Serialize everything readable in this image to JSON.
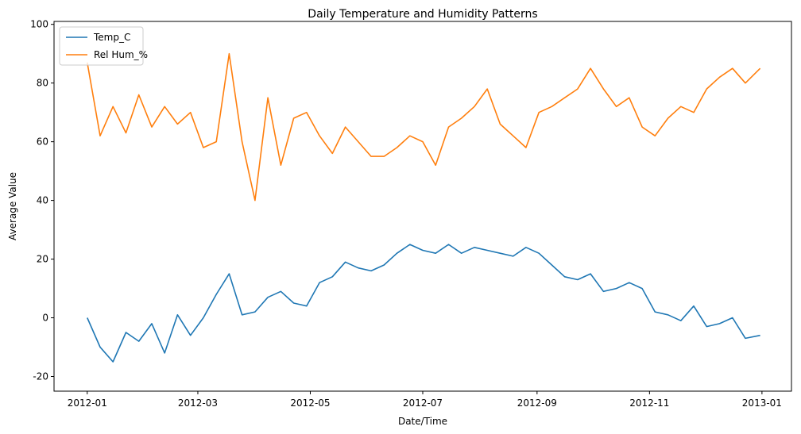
{
  "chart_data": {
    "type": "line",
    "title": "Daily Temperature and Humidity Patterns",
    "xlabel": "Date/Time",
    "ylabel": "Average Value",
    "x_tick_labels": [
      "2012-01",
      "2012-03",
      "2012-05",
      "2012-07",
      "2012-09",
      "2012-11",
      "2013-01"
    ],
    "y_ticks": [
      -20,
      0,
      20,
      40,
      60,
      80,
      100
    ],
    "ylim": [
      -25,
      101
    ],
    "xlim": [
      "2011-12-14",
      "2013-01-17"
    ],
    "legend_position": "upper-left",
    "grid": false,
    "x": [
      "2012-01-01",
      "2012-01-08",
      "2012-01-15",
      "2012-01-22",
      "2012-01-29",
      "2012-02-05",
      "2012-02-12",
      "2012-02-19",
      "2012-02-26",
      "2012-03-04",
      "2012-03-11",
      "2012-03-18",
      "2012-03-25",
      "2012-04-01",
      "2012-04-08",
      "2012-04-15",
      "2012-04-22",
      "2012-04-29",
      "2012-05-06",
      "2012-05-13",
      "2012-05-20",
      "2012-05-27",
      "2012-06-03",
      "2012-06-10",
      "2012-06-17",
      "2012-06-24",
      "2012-07-01",
      "2012-07-08",
      "2012-07-15",
      "2012-07-22",
      "2012-07-29",
      "2012-08-05",
      "2012-08-12",
      "2012-08-19",
      "2012-08-26",
      "2012-09-02",
      "2012-09-09",
      "2012-09-16",
      "2012-09-23",
      "2012-09-30",
      "2012-10-07",
      "2012-10-14",
      "2012-10-21",
      "2012-10-28",
      "2012-11-04",
      "2012-11-11",
      "2012-11-18",
      "2012-11-25",
      "2012-12-02",
      "2012-12-09",
      "2012-12-16",
      "2012-12-23",
      "2012-12-31"
    ],
    "series": [
      {
        "name": "Temp_C",
        "color": "#1f77b4",
        "values": [
          0,
          -10,
          -15,
          -5,
          -8,
          -2,
          -12,
          1,
          -6,
          0,
          8,
          15,
          1,
          2,
          7,
          9,
          5,
          4,
          12,
          14,
          19,
          17,
          16,
          18,
          22,
          25,
          23,
          22,
          25,
          22,
          24,
          23,
          22,
          21,
          24,
          22,
          18,
          14,
          13,
          15,
          9,
          10,
          12,
          10,
          2,
          1,
          -1,
          4,
          -3,
          -2,
          0,
          -7,
          -6
        ]
      },
      {
        "name": "Rel Hum_%",
        "color": "#ff7f0e",
        "values": [
          87,
          62,
          72,
          63,
          76,
          65,
          72,
          66,
          70,
          58,
          60,
          90,
          60,
          40,
          75,
          52,
          68,
          70,
          62,
          56,
          65,
          60,
          55,
          55,
          58,
          62,
          60,
          52,
          65,
          68,
          72,
          78,
          66,
          62,
          58,
          70,
          72,
          75,
          78,
          85,
          78,
          72,
          75,
          65,
          62,
          68,
          72,
          70,
          78,
          82,
          85,
          80,
          85
        ]
      }
    ]
  }
}
